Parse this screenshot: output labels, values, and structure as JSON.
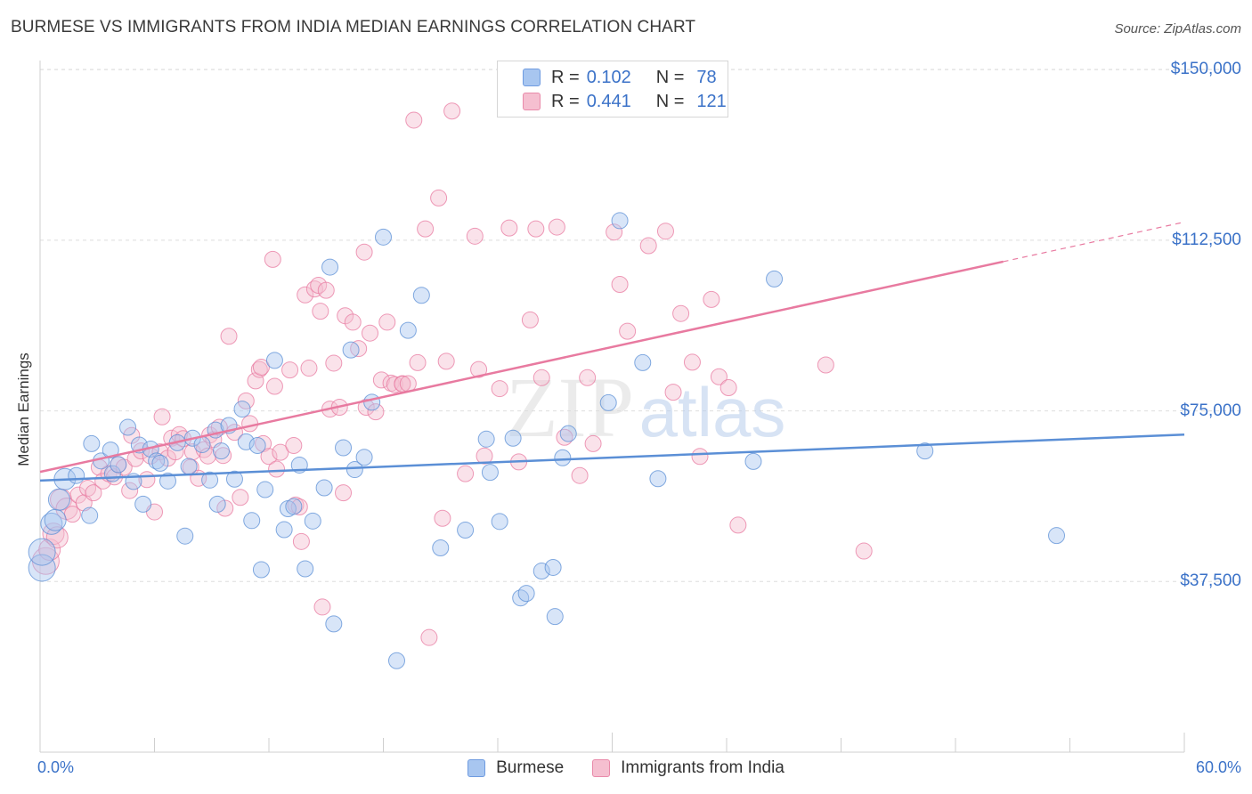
{
  "title": "BURMESE VS IMMIGRANTS FROM INDIA MEDIAN EARNINGS CORRELATION CHART",
  "source": "Source: ZipAtlas.com",
  "watermark": {
    "zip": "ZIP",
    "atlas": "atlas"
  },
  "legend": {
    "burmese": {
      "r_label": "R =",
      "r_value": "0.102",
      "n_label": "N =",
      "n_value": "78",
      "swatch_fill": "#a8c6f0",
      "swatch_stroke": "#6f9be0"
    },
    "india": {
      "r_label": "R =",
      "r_value": "0.441",
      "n_label": "N =",
      "n_value": "121",
      "swatch_fill": "#f5bfd0",
      "swatch_stroke": "#e98aaa"
    }
  },
  "bottom_legend": [
    "Burmese",
    "Immigrants from India"
  ],
  "chart_data": {
    "type": "scatter",
    "title": "BURMESE VS IMMIGRANTS FROM INDIA MEDIAN EARNINGS CORRELATION CHART",
    "xlabel": "",
    "ylabel": "Median Earnings",
    "xlim": [
      0,
      60
    ],
    "ylim": [
      0,
      152000
    ],
    "x_tick_labels": [
      "0.0%",
      "60.0%"
    ],
    "y_ticks": [
      37500,
      75000,
      112500,
      150000
    ],
    "y_tick_labels": [
      "$37,500",
      "$75,000",
      "$112,500",
      "$150,000"
    ],
    "series": [
      {
        "name": "Burmese",
        "color": "#5b8fd6",
        "fill": "#a8c6f0",
        "r": 0.102,
        "n": 78,
        "trend": {
          "x0": 0,
          "y0": 59700,
          "x1": 60,
          "y1": 69800
        },
        "points": [
          [
            0.1,
            40500
          ],
          [
            0.1,
            44000
          ],
          [
            0.6,
            50200
          ],
          [
            0.8,
            51000
          ],
          [
            1.0,
            55500
          ],
          [
            1.3,
            60000
          ],
          [
            1.9,
            60800
          ],
          [
            2.6,
            52000
          ],
          [
            2.7,
            67800
          ],
          [
            3.2,
            64000
          ],
          [
            3.7,
            66400
          ],
          [
            3.8,
            61200
          ],
          [
            4.1,
            63200
          ],
          [
            4.6,
            71400
          ],
          [
            4.9,
            59500
          ],
          [
            5.2,
            67500
          ],
          [
            5.4,
            54500
          ],
          [
            5.8,
            66600
          ],
          [
            6.1,
            64000
          ],
          [
            6.3,
            63500
          ],
          [
            6.7,
            59600
          ],
          [
            7.2,
            68000
          ],
          [
            7.6,
            47500
          ],
          [
            7.8,
            62800
          ],
          [
            8.0,
            69000
          ],
          [
            8.5,
            67600
          ],
          [
            8.9,
            59800
          ],
          [
            9.2,
            70800
          ],
          [
            9.3,
            54500
          ],
          [
            9.5,
            66200
          ],
          [
            9.9,
            71800
          ],
          [
            10.2,
            60000
          ],
          [
            10.6,
            75400
          ],
          [
            10.8,
            68200
          ],
          [
            11.1,
            50900
          ],
          [
            11.4,
            67400
          ],
          [
            11.6,
            40100
          ],
          [
            11.8,
            57700
          ],
          [
            12.3,
            86100
          ],
          [
            12.8,
            48900
          ],
          [
            13.0,
            53500
          ],
          [
            13.3,
            54000
          ],
          [
            13.6,
            63100
          ],
          [
            13.9,
            40300
          ],
          [
            14.3,
            50800
          ],
          [
            14.9,
            58100
          ],
          [
            15.2,
            106600
          ],
          [
            15.4,
            28200
          ],
          [
            15.9,
            66900
          ],
          [
            16.3,
            88400
          ],
          [
            16.5,
            62100
          ],
          [
            17.0,
            64800
          ],
          [
            17.4,
            76900
          ],
          [
            18.0,
            113200
          ],
          [
            18.7,
            20100
          ],
          [
            19.3,
            92700
          ],
          [
            20.0,
            100400
          ],
          [
            21.0,
            44900
          ],
          [
            22.3,
            48800
          ],
          [
            23.4,
            68800
          ],
          [
            23.6,
            61500
          ],
          [
            24.1,
            50700
          ],
          [
            24.8,
            69000
          ],
          [
            25.2,
            33900
          ],
          [
            25.5,
            34900
          ],
          [
            26.3,
            39800
          ],
          [
            26.9,
            40600
          ],
          [
            27.0,
            29800
          ],
          [
            27.4,
            64700
          ],
          [
            27.7,
            70000
          ],
          [
            29.8,
            76800
          ],
          [
            30.4,
            116800
          ],
          [
            31.6,
            85600
          ],
          [
            32.4,
            60100
          ],
          [
            37.4,
            63900
          ],
          [
            38.5,
            104000
          ],
          [
            46.4,
            66200
          ],
          [
            53.3,
            47600
          ]
        ]
      },
      {
        "name": "Immigrants from India",
        "color": "#e87aa0",
        "fill": "#f5bfd0",
        "r": 0.441,
        "n": 121,
        "trend": {
          "x0": 0,
          "y0": 61600,
          "x1": 50.5,
          "y1": 107800
        },
        "trend_dashed": {
          "x0": 50.5,
          "y0": 107800,
          "x1": 60,
          "y1": 116500
        },
        "points": [
          [
            0.3,
            42000
          ],
          [
            0.5,
            44500
          ],
          [
            0.7,
            48000
          ],
          [
            0.9,
            47200
          ],
          [
            1.1,
            55500
          ],
          [
            1.4,
            53500
          ],
          [
            1.7,
            52300
          ],
          [
            2.0,
            56500
          ],
          [
            2.3,
            54800
          ],
          [
            2.5,
            58000
          ],
          [
            2.8,
            57000
          ],
          [
            3.1,
            62600
          ],
          [
            3.3,
            59600
          ],
          [
            3.6,
            61200
          ],
          [
            3.9,
            60500
          ],
          [
            4.1,
            63200
          ],
          [
            4.4,
            62600
          ],
          [
            4.7,
            57500
          ],
          [
            4.8,
            69600
          ],
          [
            5.0,
            64500
          ],
          [
            5.3,
            66200
          ],
          [
            5.6,
            59900
          ],
          [
            5.8,
            65100
          ],
          [
            6.0,
            52800
          ],
          [
            6.3,
            66000
          ],
          [
            6.4,
            73700
          ],
          [
            6.7,
            64600
          ],
          [
            6.9,
            69000
          ],
          [
            7.1,
            66000
          ],
          [
            7.3,
            69800
          ],
          [
            7.5,
            68900
          ],
          [
            7.9,
            62600
          ],
          [
            8.0,
            66000
          ],
          [
            8.3,
            60200
          ],
          [
            8.6,
            66500
          ],
          [
            8.8,
            65100
          ],
          [
            8.9,
            69700
          ],
          [
            9.1,
            68700
          ],
          [
            9.4,
            71400
          ],
          [
            9.6,
            65200
          ],
          [
            9.7,
            53600
          ],
          [
            9.9,
            91400
          ],
          [
            10.2,
            70300
          ],
          [
            10.5,
            56000
          ],
          [
            10.8,
            77200
          ],
          [
            11.0,
            72200
          ],
          [
            11.3,
            81600
          ],
          [
            11.5,
            84100
          ],
          [
            11.6,
            84600
          ],
          [
            11.7,
            67800
          ],
          [
            12.0,
            65000
          ],
          [
            12.2,
            108300
          ],
          [
            12.3,
            80400
          ],
          [
            12.4,
            62200
          ],
          [
            12.6,
            65900
          ],
          [
            13.1,
            84000
          ],
          [
            13.3,
            67400
          ],
          [
            13.4,
            54300
          ],
          [
            13.6,
            53900
          ],
          [
            13.7,
            46300
          ],
          [
            13.9,
            100500
          ],
          [
            14.1,
            84400
          ],
          [
            14.4,
            101800
          ],
          [
            14.6,
            102600
          ],
          [
            14.7,
            96900
          ],
          [
            14.8,
            31900
          ],
          [
            15.0,
            101500
          ],
          [
            15.2,
            75400
          ],
          [
            15.4,
            85500
          ],
          [
            15.7,
            75800
          ],
          [
            15.9,
            57000
          ],
          [
            16.0,
            95900
          ],
          [
            16.4,
            94500
          ],
          [
            16.7,
            88700
          ],
          [
            17.0,
            109900
          ],
          [
            17.1,
            75800
          ],
          [
            17.3,
            92100
          ],
          [
            17.6,
            74800
          ],
          [
            17.9,
            81800
          ],
          [
            18.2,
            94500
          ],
          [
            18.4,
            81100
          ],
          [
            18.6,
            80800
          ],
          [
            19.0,
            81000
          ],
          [
            19.0,
            80900
          ],
          [
            19.3,
            81000
          ],
          [
            19.6,
            138900
          ],
          [
            19.8,
            85600
          ],
          [
            20.2,
            115000
          ],
          [
            20.4,
            25200
          ],
          [
            20.9,
            121800
          ],
          [
            21.1,
            51400
          ],
          [
            21.3,
            85900
          ],
          [
            21.6,
            140900
          ],
          [
            22.3,
            61200
          ],
          [
            22.8,
            113400
          ],
          [
            23.0,
            84100
          ],
          [
            23.3,
            65100
          ],
          [
            24.1,
            79900
          ],
          [
            24.6,
            115200
          ],
          [
            25.1,
            63800
          ],
          [
            25.7,
            95000
          ],
          [
            26.0,
            115000
          ],
          [
            26.3,
            82300
          ],
          [
            27.1,
            115400
          ],
          [
            27.5,
            69200
          ],
          [
            28.3,
            60800
          ],
          [
            28.7,
            82300
          ],
          [
            29.0,
            67800
          ],
          [
            30.1,
            114300
          ],
          [
            30.4,
            102800
          ],
          [
            30.8,
            92500
          ],
          [
            31.9,
            111300
          ],
          [
            32.8,
            114500
          ],
          [
            33.2,
            79100
          ],
          [
            33.6,
            96400
          ],
          [
            34.2,
            85700
          ],
          [
            34.6,
            65000
          ],
          [
            35.2,
            99500
          ],
          [
            35.6,
            82500
          ],
          [
            36.1,
            80100
          ],
          [
            36.6,
            49900
          ],
          [
            41.2,
            85100
          ],
          [
            43.2,
            44200
          ]
        ]
      }
    ]
  }
}
